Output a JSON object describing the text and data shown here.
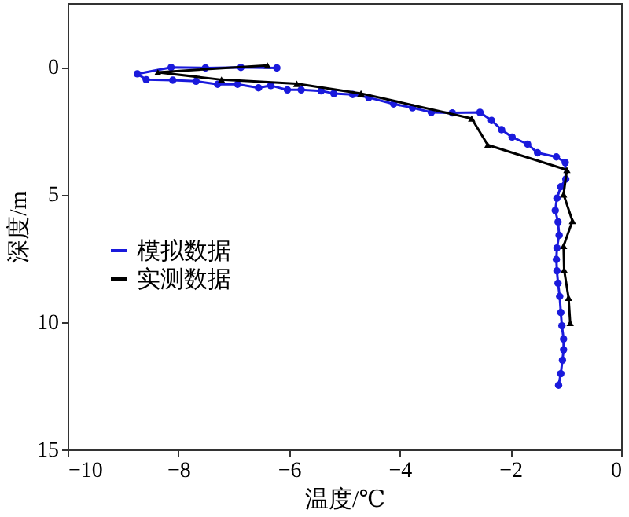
{
  "chart_data": {
    "type": "line",
    "xlabel": "温度/℃",
    "ylabel": "深度/m",
    "xlim": [
      -10,
      0
    ],
    "xticks": [
      -10,
      -8,
      -6,
      -4,
      -2,
      0
    ],
    "ylim": [
      15,
      -2.5
    ],
    "yticks": [
      0,
      5,
      10,
      15
    ],
    "grid": false,
    "legend": "left",
    "line_style": "solid",
    "series": [
      {
        "name": "模拟数据",
        "color": "#1a1adc",
        "marker": "circle",
        "x": [
          -6.22,
          -6.87,
          -7.51,
          -8.13,
          -8.74,
          -8.58,
          -8.1,
          -7.68,
          -7.29,
          -6.93,
          -6.55,
          -6.33,
          -6.03,
          -5.78,
          -5.42,
          -5.19,
          -4.85,
          -4.56,
          -4.11,
          -3.77,
          -3.43,
          -3.05,
          -2.55,
          -2.34,
          -2.16,
          -1.97,
          -1.69,
          -1.51,
          -1.17,
          -1.01,
          -1.0,
          -1.09,
          -1.16,
          -1.19,
          -1.14,
          -1.12,
          -1.16,
          -1.17,
          -1.16,
          -1.14,
          -1.11,
          -1.09,
          -1.07,
          -1.04,
          -1.04,
          -1.06,
          -1.09,
          -1.13
        ],
        "values": [
          0.04,
          0.02,
          0.04,
          0.02,
          0.27,
          0.5,
          0.52,
          0.56,
          0.68,
          0.68,
          0.82,
          0.73,
          0.9,
          0.9,
          0.94,
          1.04,
          1.08,
          1.2,
          1.45,
          1.6,
          1.78,
          1.8,
          1.78,
          2.1,
          2.46,
          2.75,
          3.03,
          3.37,
          3.53,
          3.75,
          4.4,
          4.7,
          5.15,
          5.63,
          6.08,
          6.6,
          7.1,
          7.55,
          8.0,
          8.48,
          9.0,
          9.63,
          10.15,
          10.67,
          11.09,
          11.5,
          12.03,
          12.48
        ]
      },
      {
        "name": "实测数据",
        "color": "#000000",
        "marker": "triangle",
        "x": [
          -6.39,
          -8.37,
          -7.22,
          -5.86,
          -4.7,
          -2.7,
          -2.41,
          -0.98,
          -1.04,
          -0.88,
          -1.04,
          -1.03,
          -0.95,
          -0.92
        ],
        "values": [
          -0.06,
          0.21,
          0.5,
          0.66,
          1.04,
          2.02,
          3.06,
          4.04,
          5.0,
          6.04,
          7.02,
          7.96,
          9.05,
          10.04
        ]
      }
    ]
  }
}
